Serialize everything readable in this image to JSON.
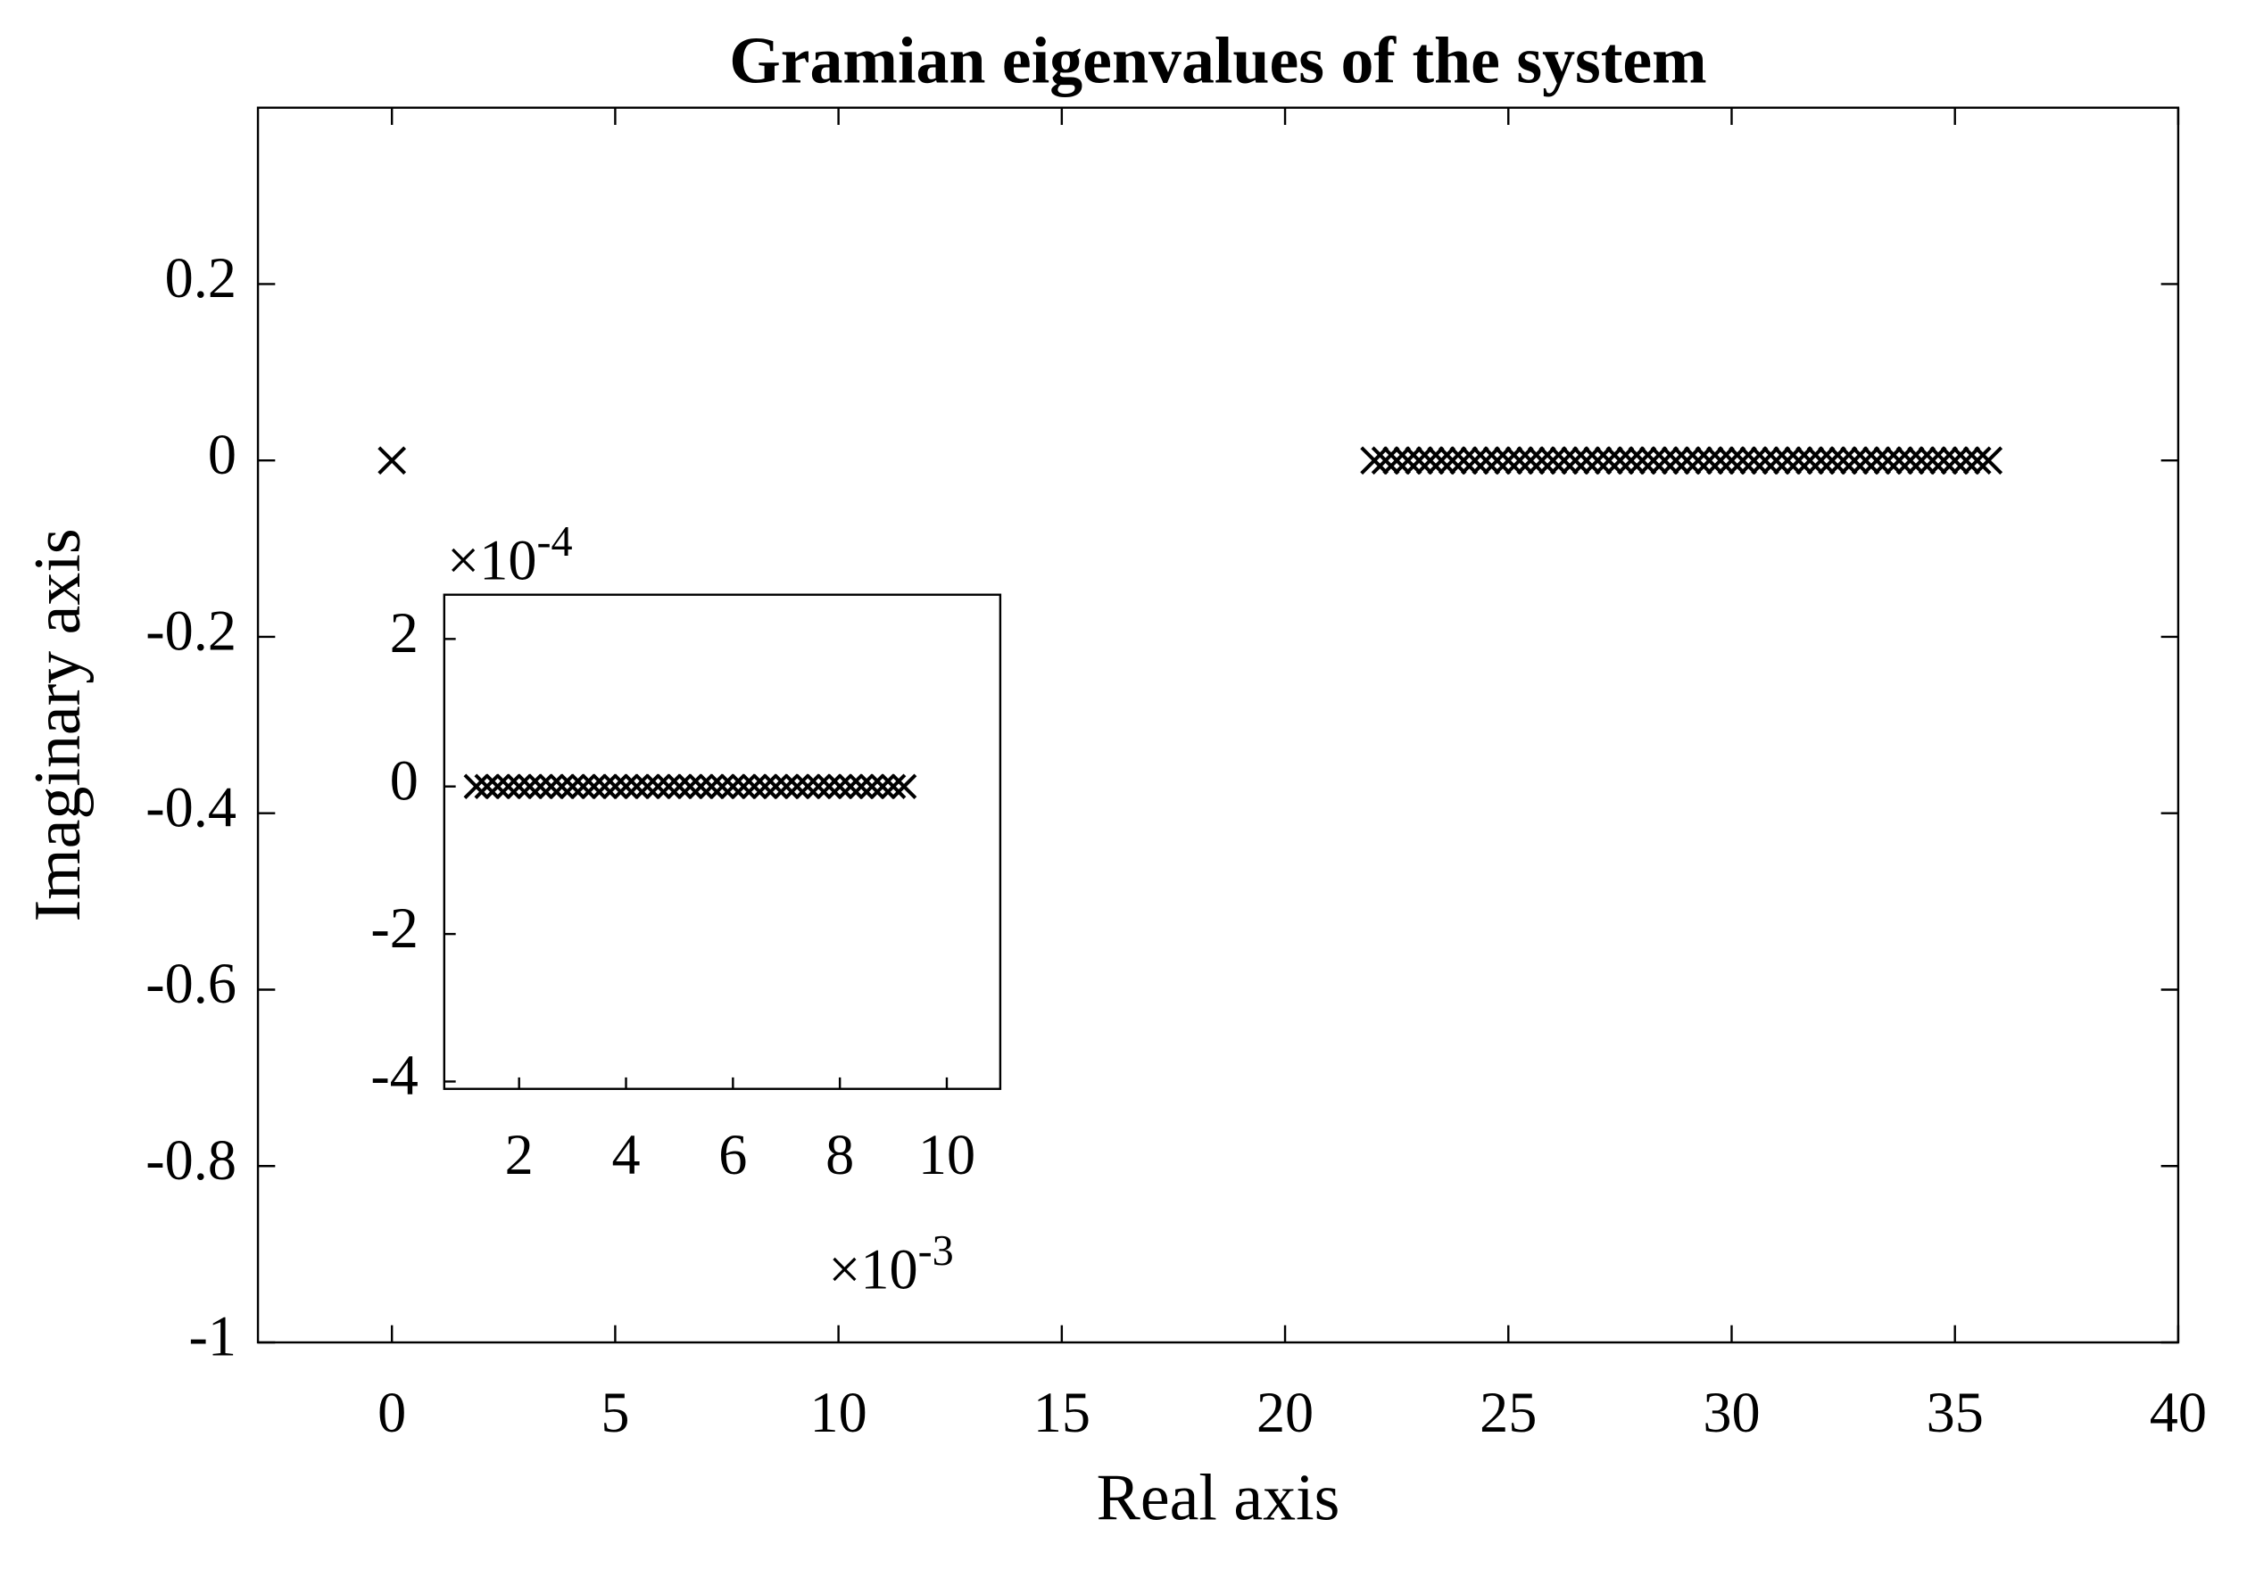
{
  "chart_data": [
    {
      "type": "scatter",
      "title": "Gramian eigenvalues of the system",
      "xlabel": "Real axis",
      "ylabel": "Imaginary axis",
      "xlim": [
        -3,
        40
      ],
      "ylim": [
        -1,
        0.4
      ],
      "xticks": [
        0,
        5,
        10,
        15,
        20,
        25,
        30,
        35,
        40
      ],
      "yticks": [
        -1,
        -0.8,
        -0.6,
        -0.4,
        -0.2,
        0,
        0.2
      ],
      "marker": "x",
      "color": "#000000",
      "series": [
        {
          "x": [
            0,
            22,
            22.25,
            22.5,
            22.75,
            23,
            23.25,
            23.5,
            23.75,
            24,
            24.25,
            24.5,
            24.75,
            25,
            25.25,
            25.5,
            25.75,
            26,
            26.25,
            26.5,
            26.75,
            27,
            27.25,
            27.5,
            27.75,
            28,
            28.25,
            28.5,
            28.75,
            29,
            29.25,
            29.5,
            29.75,
            30,
            30.25,
            30.5,
            30.75,
            31,
            31.25,
            31.5,
            31.75,
            32,
            32.25,
            32.5,
            32.75,
            33,
            33.25,
            33.5,
            33.75,
            34,
            34.25,
            34.5,
            34.75,
            35,
            35.25,
            35.5,
            35.75
          ],
          "values": [
            0,
            0,
            0,
            0,
            0,
            0,
            0,
            0,
            0,
            0,
            0,
            0,
            0,
            0,
            0,
            0,
            0,
            0,
            0,
            0,
            0,
            0,
            0,
            0,
            0,
            0,
            0,
            0,
            0,
            0,
            0,
            0,
            0,
            0,
            0,
            0,
            0,
            0,
            0,
            0,
            0,
            0,
            0,
            0,
            0,
            0,
            0,
            0,
            0,
            0,
            0,
            0,
            0,
            0,
            0,
            0,
            0
          ]
        }
      ]
    },
    {
      "type": "scatter",
      "xlim": [
        0.6,
        11
      ],
      "ylim": [
        -4.1,
        2.6
      ],
      "xticks": [
        2,
        4,
        6,
        8,
        10
      ],
      "yticks": [
        -4,
        -2,
        0,
        2
      ],
      "x_multiplier": {
        "base": "×10",
        "exponent": "-3"
      },
      "y_multiplier": {
        "base": "×10",
        "exponent": "-4"
      },
      "marker": "x",
      "color": "#000000",
      "series": [
        {
          "x": [
            1.2,
            1.4,
            1.6,
            1.8,
            2,
            2.2,
            2.4,
            2.6,
            2.8,
            3,
            3.2,
            3.4,
            3.6,
            3.8,
            4,
            4.2,
            4.4,
            4.6,
            4.8,
            5,
            5.2,
            5.4,
            5.6,
            5.8,
            6,
            6.2,
            6.4,
            6.6,
            6.8,
            7,
            7.2,
            7.4,
            7.6,
            7.8,
            8,
            8.2,
            8.4,
            8.6,
            8.8,
            9,
            9.2
          ],
          "values": [
            0,
            0,
            0,
            0,
            0,
            0,
            0,
            0,
            0,
            0,
            0,
            0,
            0,
            0,
            0,
            0,
            0,
            0,
            0,
            0,
            0,
            0,
            0,
            0,
            0,
            0,
            0,
            0,
            0,
            0,
            0,
            0,
            0,
            0,
            0,
            0,
            0,
            0,
            0,
            0,
            0
          ]
        }
      ]
    }
  ]
}
